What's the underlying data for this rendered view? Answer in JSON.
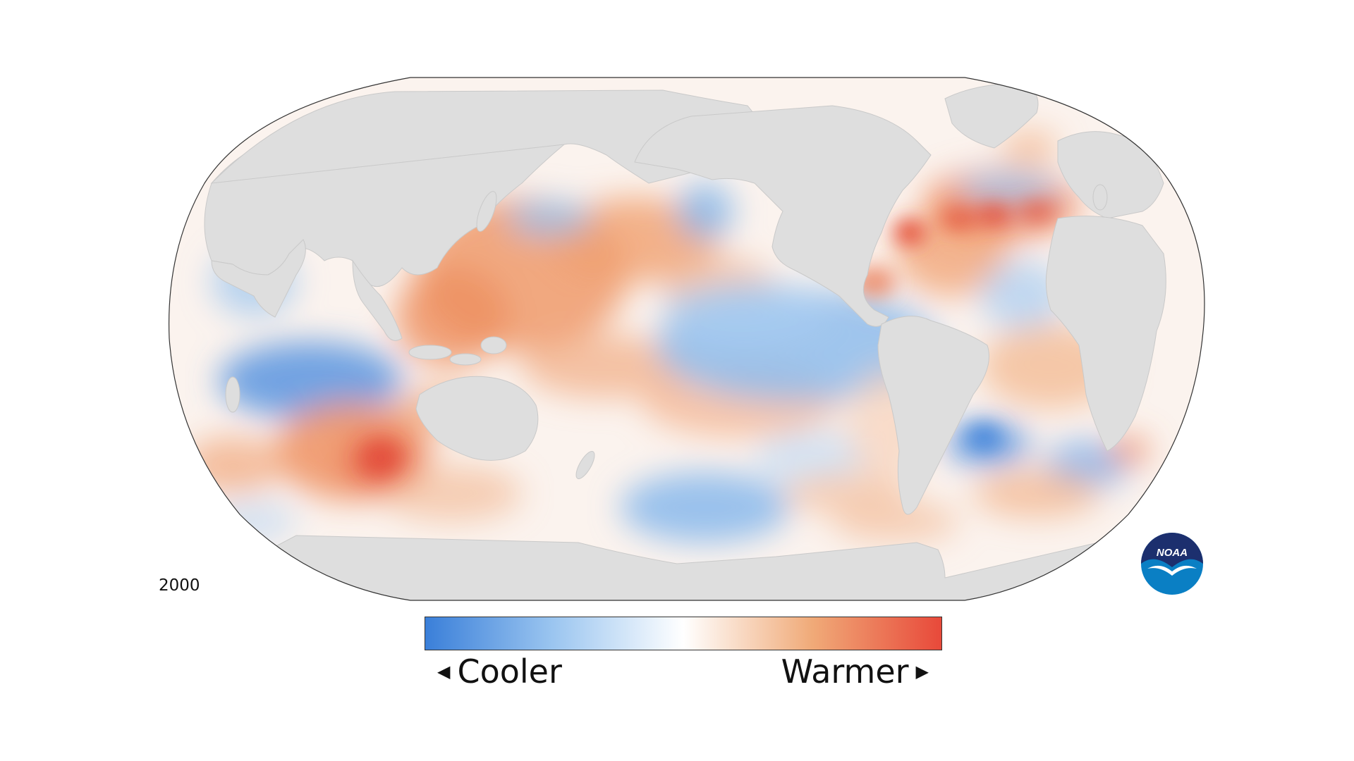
{
  "map": {
    "year": "2000",
    "projection": "robinson",
    "land_color": "#dedede",
    "outline_color": "#333333"
  },
  "legend": {
    "cooler_label": "Cooler",
    "warmer_label": "Warmer",
    "cooler_arrow_icon": "triangle-left",
    "warmer_arrow_icon": "triangle-right",
    "gradient_colors": [
      "#3a7fd9",
      "#9cc6f0",
      "#ffffff",
      "#f3b88d",
      "#e8493a"
    ]
  },
  "logo": {
    "name": "noaa-logo",
    "text": "NOAA"
  }
}
